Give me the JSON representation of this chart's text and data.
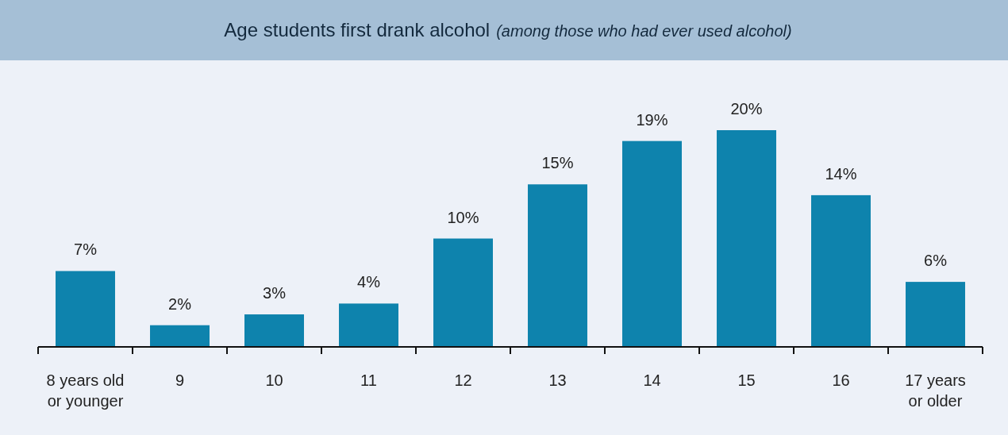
{
  "chart_data": {
    "type": "bar",
    "title": "Age students first drank alcohol",
    "subtitle": "(among those who had ever used alcohol)",
    "categories": [
      "8 years old or younger",
      "9",
      "10",
      "11",
      "12",
      "13",
      "14",
      "15",
      "16",
      "17 years or older"
    ],
    "values": [
      7,
      2,
      3,
      4,
      10,
      15,
      19,
      20,
      14,
      6
    ],
    "value_labels": [
      "7%",
      "2%",
      "3%",
      "4%",
      "10%",
      "15%",
      "19%",
      "20%",
      "14%",
      "6%"
    ],
    "color": "#0e83ad"
  }
}
